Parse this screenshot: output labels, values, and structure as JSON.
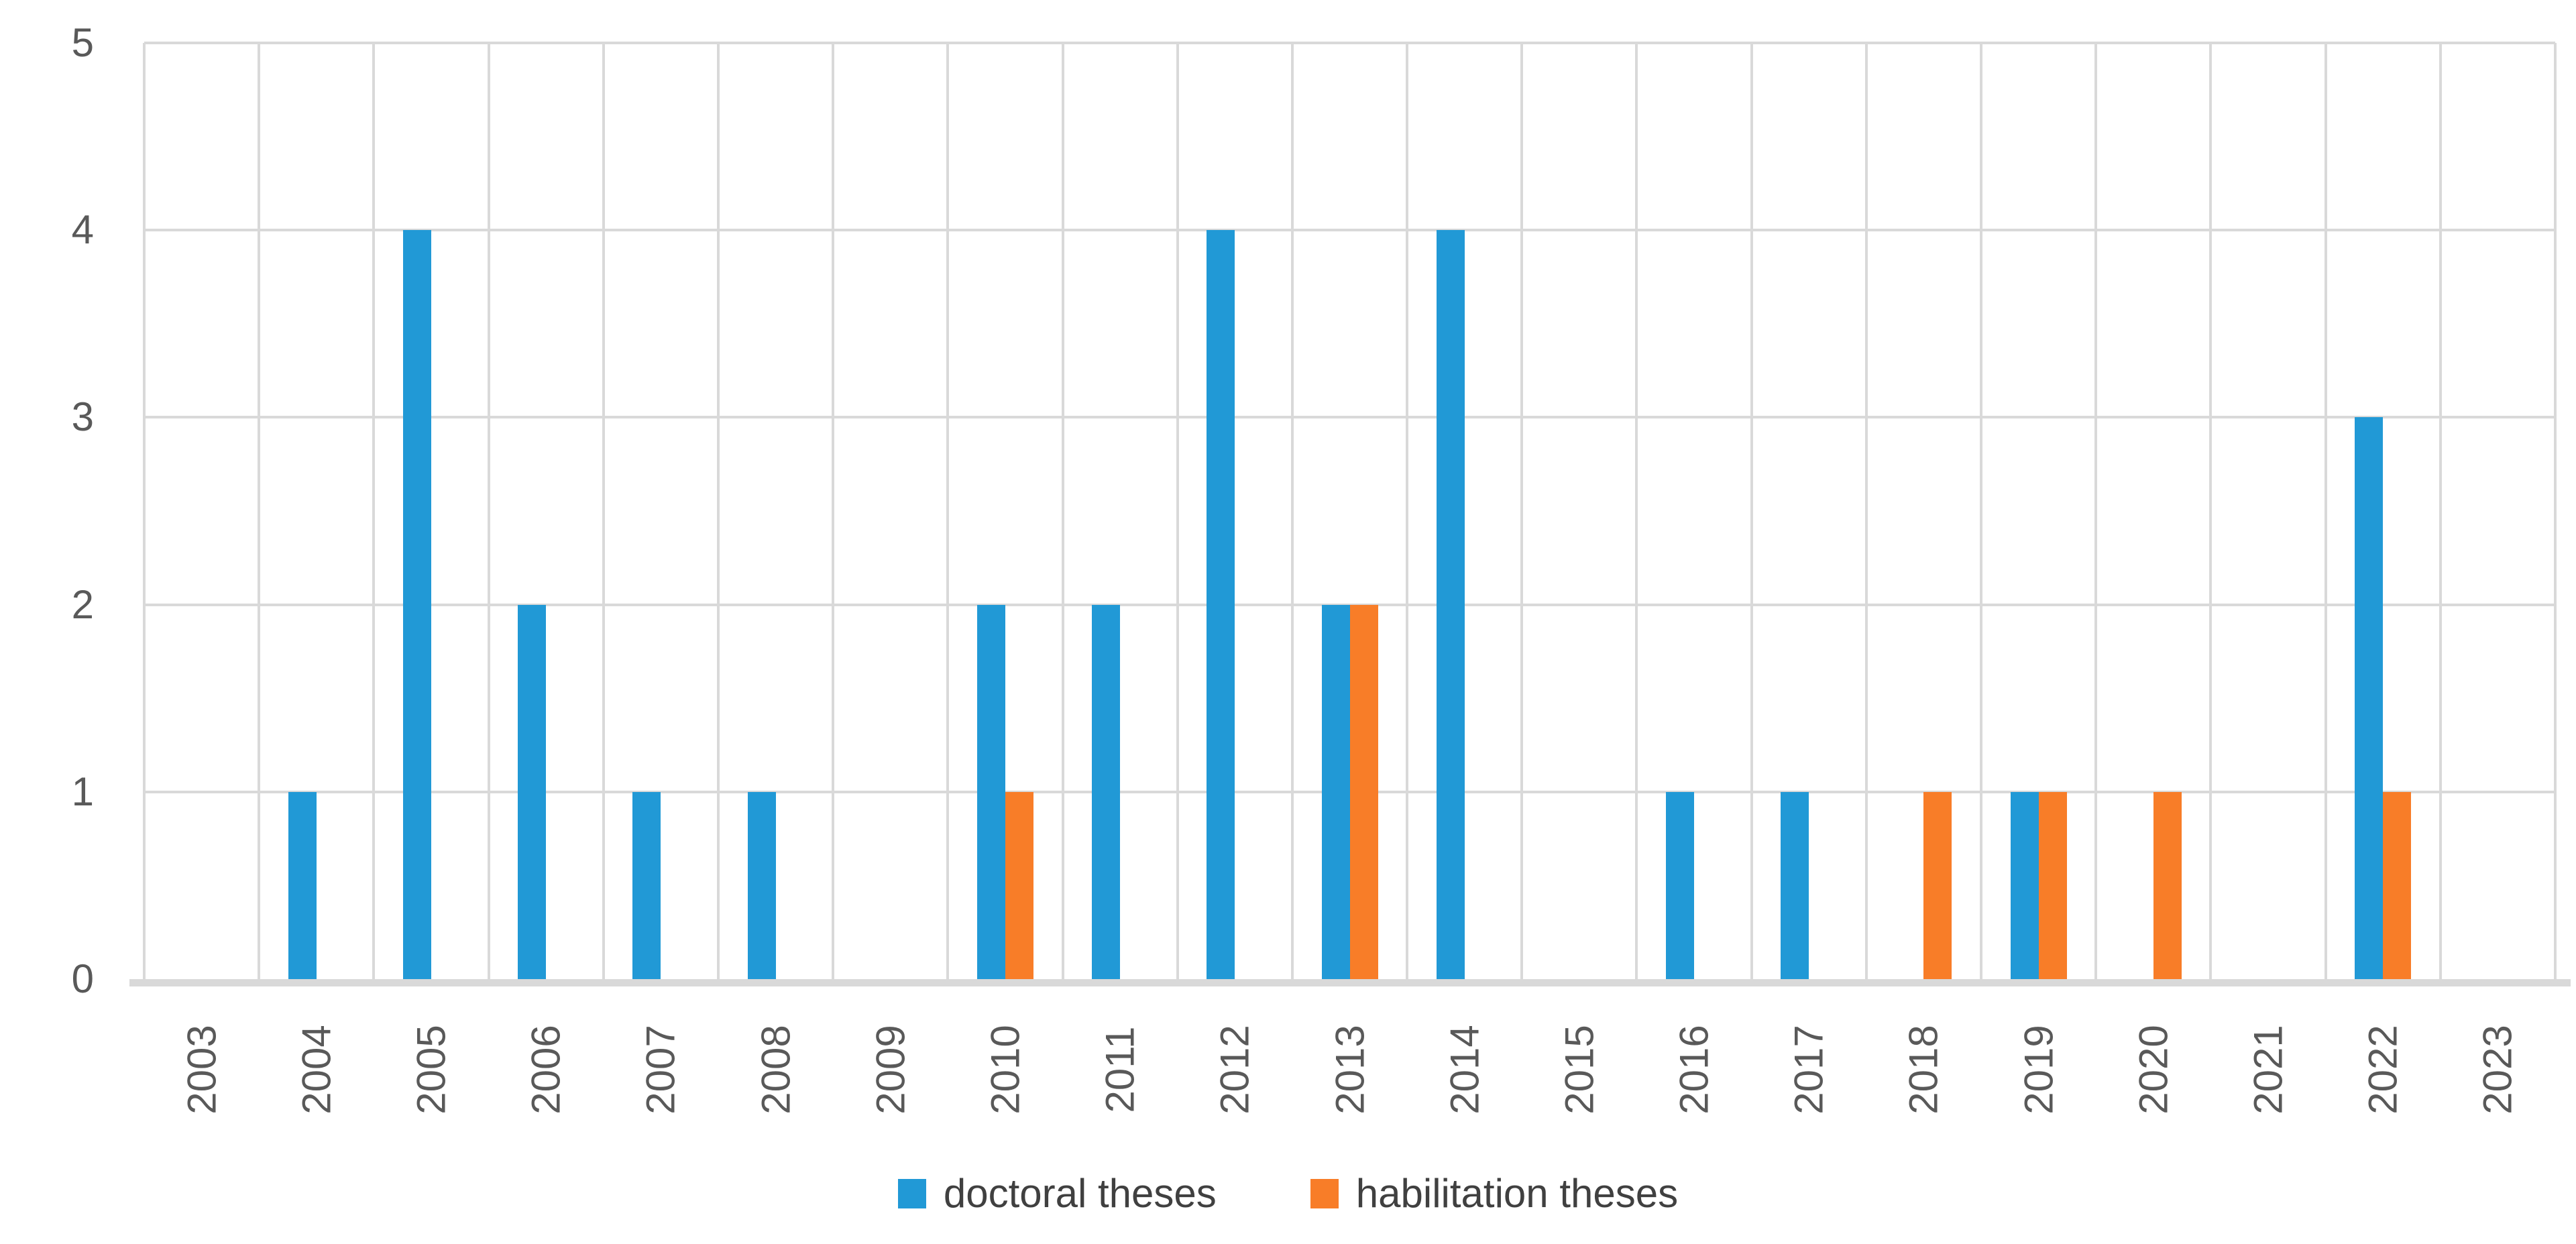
{
  "chart_data": {
    "type": "bar",
    "title": "",
    "xlabel": "",
    "ylabel": "",
    "categories": [
      "2003",
      "2004",
      "2005",
      "2006",
      "2007",
      "2008",
      "2009",
      "2010",
      "2011",
      "2012",
      "2013",
      "2014",
      "2015",
      "2016",
      "2017",
      "2018",
      "2019",
      "2020",
      "2021",
      "2022",
      "2023"
    ],
    "series": [
      {
        "name": "doctoral theses",
        "color": "#2199d6",
        "values": [
          0,
          1,
          4,
          2,
          1,
          1,
          0,
          2,
          2,
          4,
          2,
          4,
          0,
          1,
          1,
          0,
          1,
          0,
          0,
          3,
          0
        ]
      },
      {
        "name": "habilitation theses",
        "color": "#f87d28",
        "values": [
          0,
          0,
          0,
          0,
          0,
          0,
          0,
          1,
          0,
          0,
          2,
          0,
          0,
          0,
          0,
          1,
          1,
          1,
          0,
          1,
          0
        ]
      }
    ],
    "ylim": [
      0,
      5
    ],
    "yticks": [
      0,
      1,
      2,
      3,
      4,
      5
    ],
    "grid": true,
    "legend_position": "bottom"
  },
  "style": {
    "axis_text_color": "#595959",
    "legend_text_color": "#404040",
    "gridline_color": "#d9d9d9",
    "axis_line_color": "#d9d9d9",
    "background_color": "#ffffff"
  }
}
